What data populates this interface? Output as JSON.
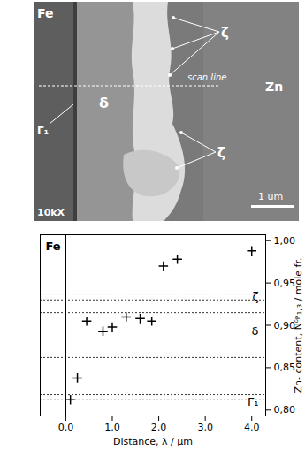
{
  "chart_data": {
    "type": "scatter",
    "x_label": "Distance, λ / μm",
    "y_label": "Zn- content, Nᵟᵖ₁,₃ / mole fr.",
    "region_label": "Fe",
    "x": [
      0.1,
      0.25,
      0.45,
      0.8,
      1.0,
      1.3,
      1.6,
      1.85,
      2.1,
      2.4,
      4.0
    ],
    "values": [
      0.812,
      0.838,
      0.905,
      0.893,
      0.898,
      0.91,
      0.908,
      0.905,
      0.97,
      0.978,
      0.988
    ],
    "color": "#000000",
    "marker": "plus",
    "interface": 0,
    "phase_boundaries": [
      0.937,
      0.93,
      0.915,
      0.862,
      0.818,
      0.812
    ],
    "phase_labels": [
      {
        "label": "ζ",
        "y": 0.934
      },
      {
        "label": "δ",
        "y": 0.893
      },
      {
        "label": "Γ₁",
        "y": 0.809
      }
    ],
    "xlim": [
      -0.55,
      4.3
    ],
    "ylim": [
      0.793,
      1.007
    ],
    "xticks": [
      {
        "value": 0,
        "label": "0,0"
      },
      {
        "value": 1,
        "label": "1,0"
      },
      {
        "value": 2,
        "label": "2,0"
      },
      {
        "value": 3,
        "label": "3,0"
      },
      {
        "value": 4,
        "label": "4,0"
      }
    ],
    "yticks": [
      {
        "value": 0.8,
        "label": "0,80"
      },
      {
        "value": 0.85,
        "label": "0,85"
      },
      {
        "value": 0.9,
        "label": "0,90"
      },
      {
        "value": 0.95,
        "label": "0,95"
      },
      {
        "value": 1,
        "label": "1,00"
      }
    ],
    "grid": false
  },
  "micrograph": {
    "texts": {
      "fe": "Fe",
      "zn": "Zn",
      "delta": "δ",
      "gamma": "Γ₁",
      "zeta": "ζ",
      "scan": "scan line",
      "magnification": "10kX",
      "scale": "1 um"
    }
  }
}
